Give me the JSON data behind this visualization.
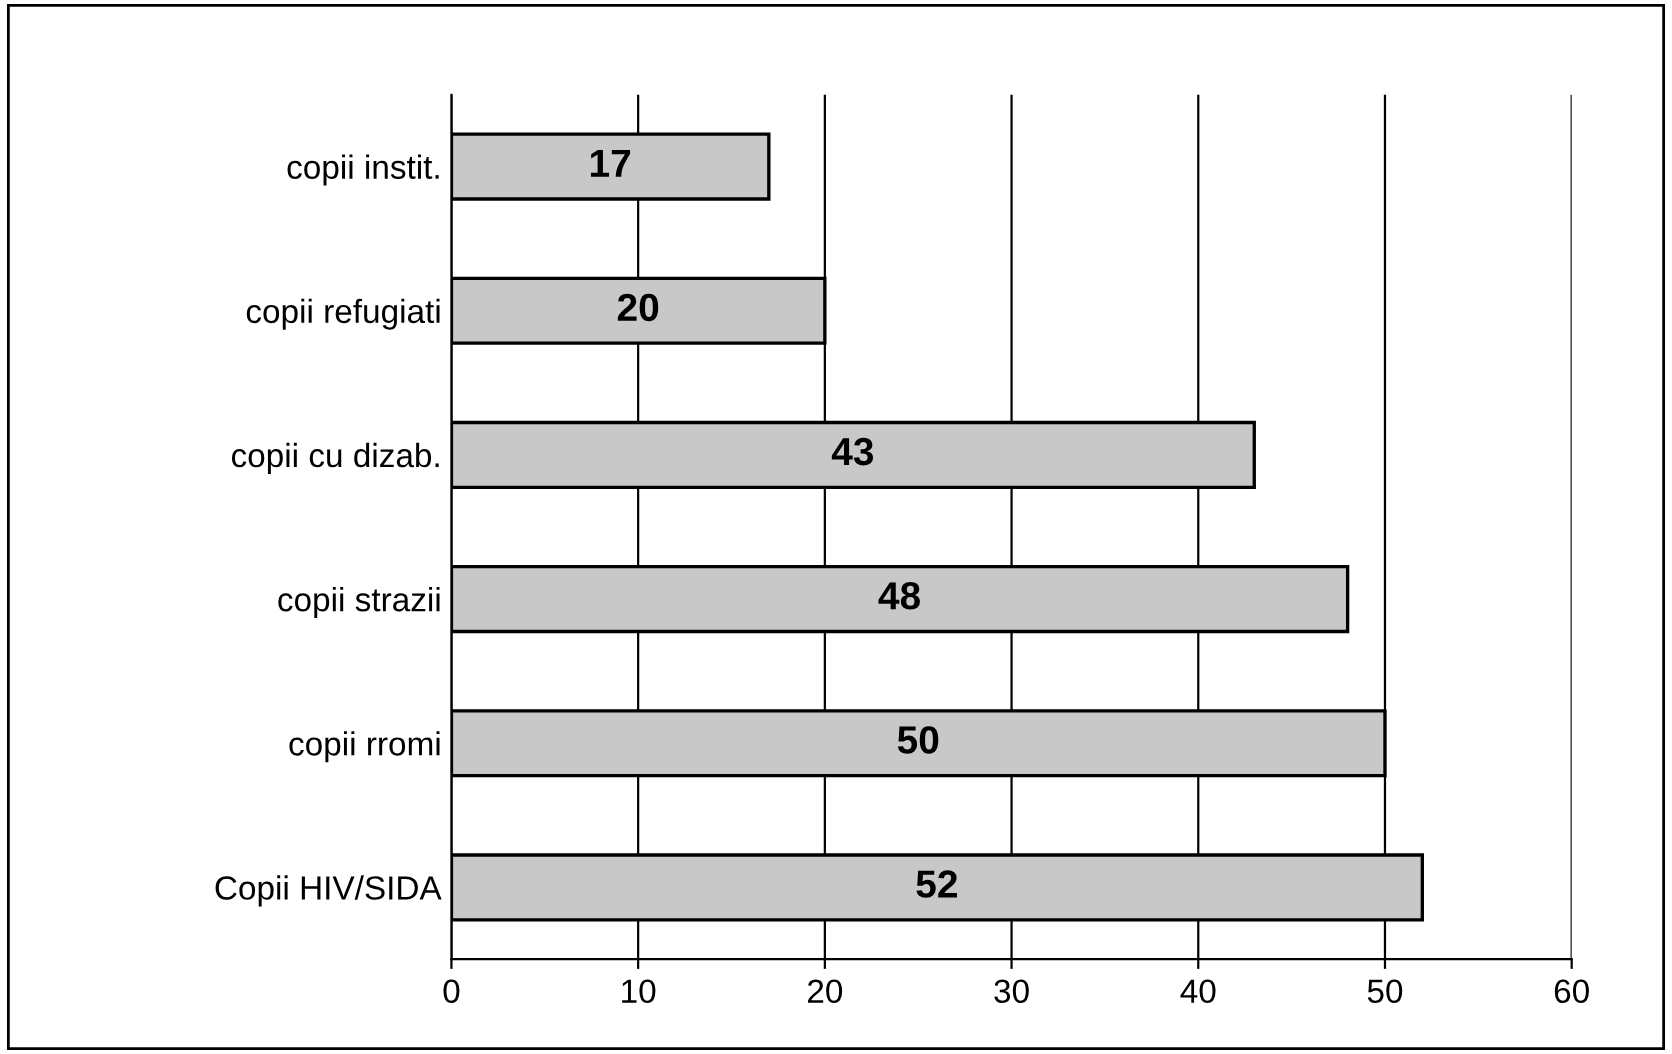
{
  "chart_data": {
    "type": "bar",
    "orientation": "horizontal",
    "categories": [
      "copii instit.",
      "copii refugiati",
      "copii cu dizab.",
      "copii strazii",
      "copii rromi",
      "Copii HIV/SIDA"
    ],
    "values": [
      17,
      20,
      43,
      48,
      50,
      52
    ],
    "color": "#c8c8c8",
    "xlim": [
      0,
      60
    ],
    "xticks": [
      0,
      10,
      20,
      30,
      40,
      50,
      60
    ],
    "grid": "x",
    "data_labels": true
  }
}
